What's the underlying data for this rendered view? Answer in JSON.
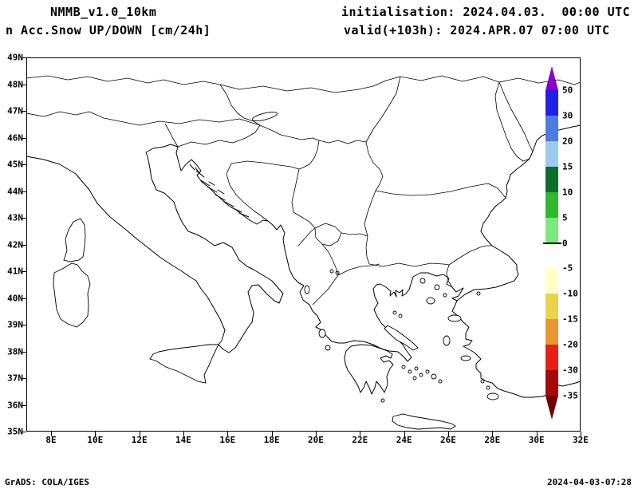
{
  "header": {
    "model": "NMMB_v1.0_10km",
    "product": "n Acc.Snow UP/DOWN [cm/24h]",
    "init_label": "initialisation: 2024.04.03.  00:00 UTC",
    "valid_label": "valid(+103h): 2024.APR.07 07:00 UTC"
  },
  "footer": {
    "credit": "GrADS: COLA/IGES",
    "timestamp": "2024-04-03-07:28"
  },
  "map": {
    "lat_labels": [
      "49N",
      "48N",
      "47N",
      "46N",
      "45N",
      "44N",
      "43N",
      "42N",
      "41N",
      "40N",
      "39N",
      "38N",
      "37N",
      "36N",
      "35N"
    ],
    "lon_labels": [
      "8E",
      "10E",
      "12E",
      "14E",
      "16E",
      "18E",
      "20E",
      "22E",
      "24E",
      "26E",
      "28E",
      "30E",
      "32E"
    ]
  },
  "colorbar": {
    "boundary_labels": [
      "50",
      "30",
      "20",
      "15",
      "10",
      "5",
      "0",
      "-5",
      "-10",
      "-15",
      "-20",
      "-30",
      "-35"
    ],
    "top_arrow_color": "#8800cc",
    "bottom_arrow_color": "#6e0000",
    "segment_colors": [
      "#2121e6",
      "#4d7be0",
      "#9ccbee",
      "#0c6e2a",
      "#2eb82e",
      "#7de87d",
      "#ffffff",
      "#ffffc8",
      "#ebd24b",
      "#eb9632",
      "#e62019",
      "#a50a0a"
    ]
  }
}
